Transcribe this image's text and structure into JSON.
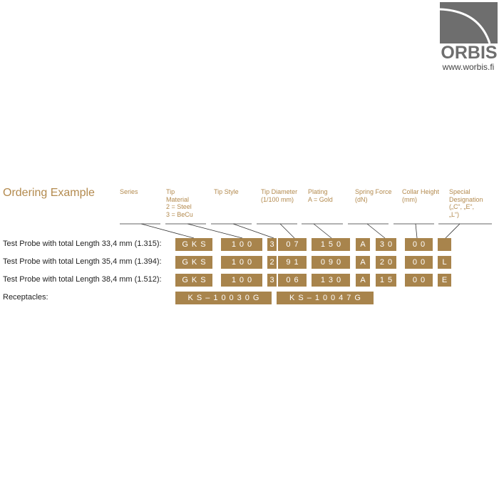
{
  "logo": {
    "name": "ORBIS",
    "url": "www.worbis.fi"
  },
  "title": "Ordering Example",
  "headers": [
    "Series",
    "Tip\nMaterial\n2 = Steel\n3 = BeCu",
    "Tip Style",
    "Tip Diameter\n(1/100 mm)",
    "Plating\nA = Gold",
    "Spring Force\n(dN)",
    "Collar Height\n(mm)",
    "Special\nDesignation\n(„C“, „E“,\n„L“)"
  ],
  "rows": [
    {
      "label": "Test Probe with total Length 33,4 mm (1.315):",
      "codes": [
        "GKS",
        "100",
        "3",
        "07",
        "150",
        "A",
        "30",
        "00",
        ""
      ]
    },
    {
      "label": "Test Probe with total Length 35,4 mm (1.394):",
      "codes": [
        "GKS",
        "100",
        "2",
        "91",
        "090",
        "A",
        "20",
        "00",
        "L"
      ]
    },
    {
      "label": "Test Probe with total Length 38,4 mm (1.512):",
      "codes": [
        "GKS",
        "100",
        "3",
        "06",
        "130",
        "A",
        "15",
        "00",
        "E"
      ]
    }
  ],
  "receptacles": {
    "label": "Receptacles:",
    "codes": [
      "KS–10030G",
      "KS–10047G"
    ]
  },
  "colors": {
    "accent": "#a8844c",
    "logo": "#6e6e6e"
  }
}
